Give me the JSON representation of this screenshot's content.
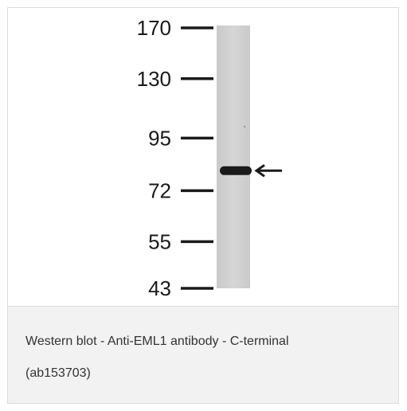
{
  "blot": {
    "markers": [
      {
        "label": "170",
        "kda": 170
      },
      {
        "label": "130",
        "kda": 130
      },
      {
        "label": "95",
        "kda": 95
      },
      {
        "label": "72",
        "kda": 72
      },
      {
        "label": "55",
        "kda": 55
      },
      {
        "label": "43",
        "kda": 43
      }
    ],
    "band_kda": 80,
    "lane_color": "#d3d3d3",
    "band_color": "#1a1a1a"
  },
  "caption": {
    "line1": "Western blot - Anti-EML1 antibody - C-terminal",
    "line2": "(ab153703)"
  }
}
